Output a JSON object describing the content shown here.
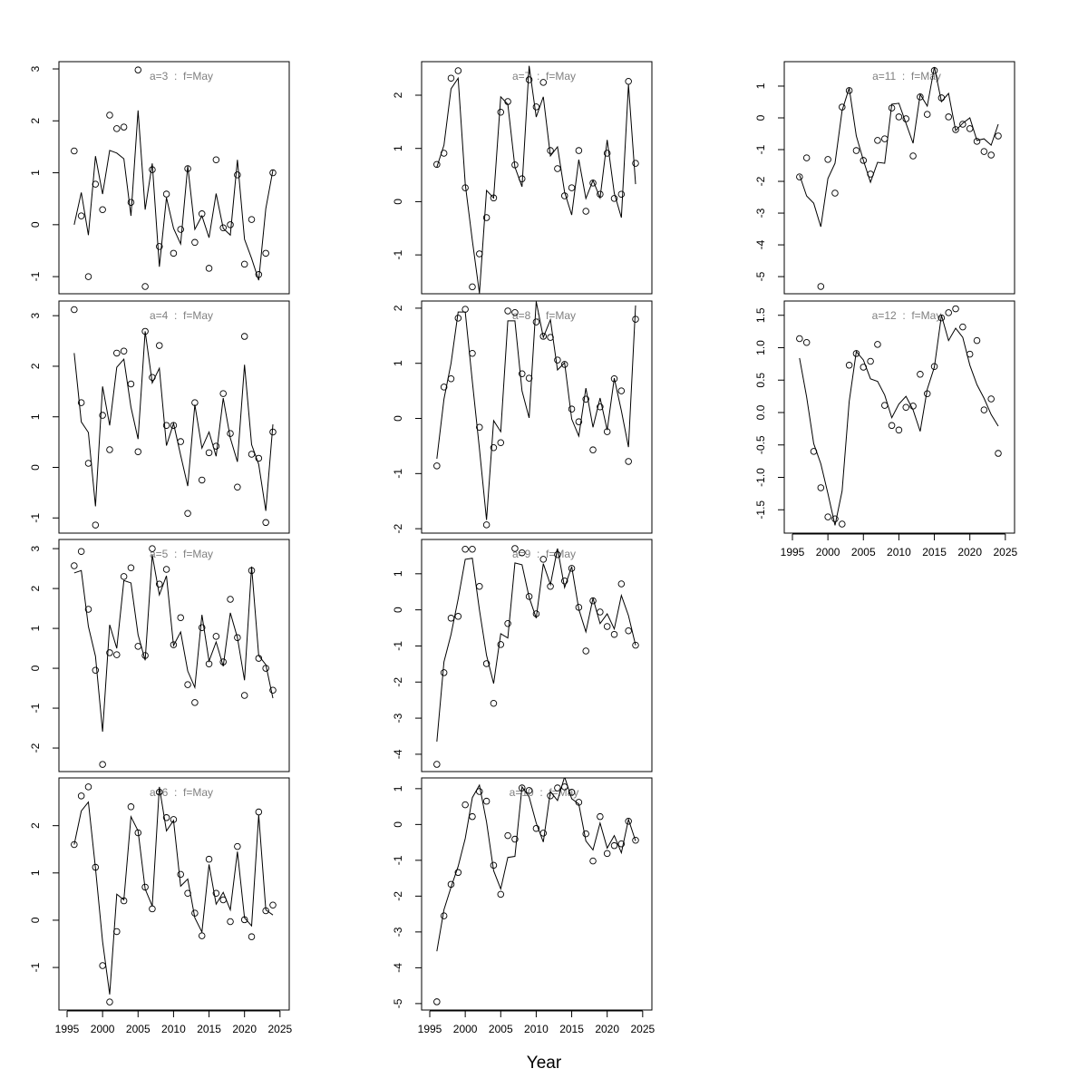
{
  "x_label": "Year",
  "chart_data": [
    {
      "type": "line",
      "title": "a=3  :  f=May",
      "color": "#000000",
      "x": [
        1996,
        1997,
        1998,
        1999,
        2000,
        2001,
        2002,
        2003,
        2004,
        2005,
        2006,
        2007,
        2008,
        2009,
        2010,
        2011,
        2012,
        2013,
        2014,
        2015,
        2016,
        2017,
        2018,
        2019,
        2020,
        2021,
        2022,
        2023,
        2024
      ],
      "points": [
        1.42,
        0.17,
        -1.0,
        0.78,
        0.29,
        2.11,
        1.85,
        1.88,
        0.43,
        2.98,
        -1.19,
        1.06,
        -0.42,
        0.59,
        -0.55,
        -0.09,
        1.08,
        -0.34,
        0.21,
        -0.84,
        1.25,
        -0.06,
        0.0,
        0.96,
        -0.76,
        0.1,
        -0.96,
        -0.55,
        1.0
      ],
      "line": [
        0.0,
        0.62,
        -0.2,
        1.32,
        0.59,
        1.43,
        1.38,
        1.27,
        0.17,
        2.2,
        0.29,
        1.18,
        -0.81,
        0.52,
        -0.07,
        -0.37,
        1.13,
        -0.09,
        0.17,
        -0.25,
        0.6,
        -0.07,
        -0.2,
        1.25,
        -0.28,
        -0.65,
        -1.07,
        0.31,
        1.05
      ],
      "xlim": [
        1993.85,
        2026.3
      ],
      "ylim": [
        -1.33,
        3.14
      ],
      "yticks": [
        -1,
        0,
        1,
        2,
        3
      ]
    },
    {
      "type": "line",
      "title": "a=4  :  f=May",
      "color": "#000000",
      "x": [
        1996,
        1997,
        1998,
        1999,
        2000,
        2001,
        2002,
        2003,
        2004,
        2005,
        2006,
        2007,
        2008,
        2009,
        2010,
        2011,
        2012,
        2013,
        2014,
        2015,
        2016,
        2017,
        2018,
        2019,
        2020,
        2021,
        2022,
        2023,
        2024
      ],
      "points": [
        3.12,
        1.28,
        0.08,
        -1.14,
        1.03,
        0.35,
        2.26,
        2.3,
        1.65,
        0.31,
        2.69,
        1.78,
        2.41,
        0.83,
        0.83,
        0.51,
        -0.91,
        1.28,
        -0.25,
        0.29,
        0.42,
        1.46,
        0.67,
        -0.39,
        2.59,
        0.26,
        0.18,
        -1.09,
        0.7
      ],
      "line": [
        2.26,
        0.9,
        0.69,
        -0.77,
        1.6,
        0.83,
        1.98,
        2.14,
        1.19,
        0.56,
        2.69,
        1.67,
        1.96,
        0.43,
        0.87,
        0.24,
        -0.37,
        1.24,
        0.38,
        0.7,
        0.22,
        1.37,
        0.58,
        0.11,
        2.03,
        0.45,
        0.06,
        -0.86,
        0.85
      ],
      "xlim": [
        1993.85,
        2026.3
      ],
      "ylim": [
        -1.3,
        3.29
      ],
      "yticks": [
        -1,
        0,
        1,
        2,
        3
      ]
    },
    {
      "type": "line",
      "title": "a=5  :  f=May",
      "color": "#000000",
      "x": [
        1996,
        1997,
        1998,
        1999,
        2000,
        2001,
        2002,
        2003,
        2004,
        2005,
        2006,
        2007,
        2008,
        2009,
        2010,
        2011,
        2012,
        2013,
        2014,
        2015,
        2016,
        2017,
        2018,
        2019,
        2020,
        2021,
        2022,
        2023,
        2024
      ],
      "points": [
        2.57,
        2.93,
        1.48,
        -0.05,
        -2.41,
        0.39,
        0.34,
        2.3,
        2.52,
        0.55,
        0.32,
        3.0,
        2.11,
        2.48,
        0.59,
        1.27,
        -0.41,
        -0.86,
        1.02,
        0.11,
        0.8,
        0.16,
        1.73,
        0.77,
        -0.68,
        2.45,
        0.25,
        0.0,
        -0.55
      ],
      "line": [
        2.39,
        2.45,
        1.05,
        0.3,
        -1.59,
        1.09,
        0.5,
        2.2,
        2.14,
        0.84,
        0.2,
        2.84,
        1.84,
        2.32,
        0.57,
        0.91,
        -0.07,
        -0.48,
        1.34,
        0.18,
        0.66,
        0.05,
        1.39,
        0.77,
        -0.3,
        2.55,
        0.32,
        0.09,
        -0.75
      ],
      "xlim": [
        1993.85,
        2026.3
      ],
      "ylim": [
        -2.59,
        3.23
      ],
      "yticks": [
        -2,
        -1,
        0,
        1,
        2,
        3
      ]
    },
    {
      "type": "line",
      "title": "a=6  :  f=May",
      "color": "#000000",
      "x": [
        1996,
        1997,
        1998,
        1999,
        2000,
        2001,
        2002,
        2003,
        2004,
        2005,
        2006,
        2007,
        2008,
        2009,
        2010,
        2011,
        2012,
        2013,
        2014,
        2015,
        2016,
        2017,
        2018,
        2019,
        2020,
        2021,
        2022,
        2023,
        2024
      ],
      "points": [
        1.6,
        2.63,
        2.82,
        1.12,
        -0.96,
        -1.73,
        -0.24,
        0.41,
        2.4,
        1.85,
        0.7,
        0.24,
        2.71,
        2.17,
        2.13,
        0.97,
        0.57,
        0.15,
        -0.33,
        1.29,
        0.57,
        0.43,
        -0.03,
        1.56,
        0.01,
        -0.35,
        2.29,
        0.2,
        0.32
      ],
      "line": [
        1.6,
        2.31,
        2.5,
        1.1,
        -0.45,
        -1.57,
        0.55,
        0.43,
        2.19,
        1.89,
        0.66,
        0.3,
        2.82,
        1.89,
        2.11,
        0.72,
        0.87,
        0.05,
        -0.25,
        1.18,
        0.34,
        0.59,
        0.22,
        1.45,
        0.05,
        -0.12,
        2.23,
        0.22,
        0.11
      ],
      "xlim": [
        1993.85,
        2026.3
      ],
      "ylim": [
        -1.9,
        3.01
      ],
      "yticks": [
        -1,
        0,
        1,
        2
      ],
      "xticks": [
        1995,
        2000,
        2005,
        2010,
        2015,
        2020,
        2025
      ]
    },
    {
      "type": "line",
      "title": "a=7  :  f=May",
      "color": "#000000",
      "x": [
        1996,
        1997,
        1998,
        1999,
        2000,
        2001,
        2002,
        2003,
        2004,
        2005,
        2006,
        2007,
        2008,
        2009,
        2010,
        2011,
        2012,
        2013,
        2014,
        2015,
        2016,
        2017,
        2018,
        2019,
        2020,
        2021,
        2022,
        2023,
        2024
      ],
      "points": [
        0.7,
        0.91,
        2.32,
        2.46,
        0.26,
        -1.6,
        -0.98,
        -0.3,
        0.07,
        1.68,
        1.88,
        0.69,
        0.43,
        2.29,
        1.78,
        2.24,
        0.96,
        0.62,
        0.11,
        0.26,
        0.96,
        -0.18,
        0.35,
        0.14,
        0.91,
        0.06,
        0.14,
        2.26,
        0.72
      ],
      "line": [
        0.65,
        1.06,
        2.12,
        2.32,
        0.33,
        -0.73,
        -1.72,
        0.21,
        0.07,
        1.97,
        1.83,
        0.65,
        0.28,
        2.55,
        1.59,
        1.97,
        0.86,
        1.03,
        0.18,
        -0.25,
        0.79,
        0.06,
        0.4,
        0.07,
        1.16,
        0.16,
        -0.3,
        2.2,
        0.33
      ],
      "xlim": [
        1993.85,
        2026.3
      ],
      "ylim": [
        -1.73,
        2.63
      ],
      "yticks": [
        -1,
        0,
        1,
        2
      ]
    },
    {
      "type": "line",
      "title": "a=8  :  f=May",
      "color": "#000000",
      "x": [
        1996,
        1997,
        1998,
        1999,
        2000,
        2001,
        2002,
        2003,
        2004,
        2005,
        2006,
        2007,
        2008,
        2009,
        2010,
        2011,
        2012,
        2013,
        2014,
        2015,
        2016,
        2017,
        2018,
        2019,
        2020,
        2021,
        2022,
        2023,
        2024
      ],
      "points": [
        -0.86,
        0.57,
        0.72,
        1.82,
        1.98,
        1.18,
        -0.16,
        -1.93,
        -0.53,
        -0.44,
        1.95,
        1.92,
        0.81,
        0.73,
        1.75,
        1.49,
        1.47,
        1.06,
        0.98,
        0.17,
        -0.06,
        0.35,
        -0.57,
        0.21,
        -0.24,
        0.72,
        0.5,
        -0.78,
        1.8
      ],
      "line": [
        -0.73,
        0.35,
        1.0,
        1.93,
        1.93,
        0.67,
        -0.55,
        -1.84,
        -0.04,
        -0.24,
        1.77,
        1.77,
        0.5,
        0.01,
        2.12,
        1.47,
        1.79,
        0.88,
        1.01,
        -0.01,
        -0.32,
        0.55,
        -0.16,
        0.37,
        -0.21,
        0.73,
        0.14,
        -0.52,
        2.05
      ],
      "xlim": [
        1993.85,
        2026.3
      ],
      "ylim": [
        -2.08,
        2.13
      ],
      "yticks": [
        -2,
        -1,
        0,
        1,
        2
      ]
    },
    {
      "type": "line",
      "title": "a=9  :  f=May",
      "color": "#000000",
      "x": [
        1996,
        1997,
        1998,
        1999,
        2000,
        2001,
        2002,
        2003,
        2004,
        2005,
        2006,
        2007,
        2008,
        2009,
        2010,
        2011,
        2012,
        2013,
        2014,
        2015,
        2016,
        2017,
        2018,
        2019,
        2020,
        2021,
        2022,
        2023,
        2024
      ],
      "points": [
        -4.28,
        -1.74,
        -0.23,
        -0.18,
        1.68,
        1.68,
        0.65,
        -1.49,
        -2.59,
        -0.96,
        -0.38,
        1.7,
        1.58,
        0.37,
        -0.11,
        1.4,
        0.65,
        1.53,
        0.8,
        1.15,
        0.07,
        -1.14,
        0.25,
        -0.06,
        -0.46,
        -0.68,
        0.72,
        -0.58,
        -0.98
      ],
      "line": [
        -3.65,
        -1.44,
        -0.68,
        0.3,
        1.4,
        1.43,
        0.0,
        -1.26,
        -2.04,
        -0.66,
        -0.78,
        1.3,
        1.25,
        0.35,
        -0.23,
        1.28,
        0.7,
        1.7,
        0.62,
        1.2,
        0.02,
        -0.61,
        0.32,
        -0.38,
        -0.11,
        -0.53,
        0.4,
        -0.16,
        -0.98
      ],
      "xlim": [
        1993.85,
        2026.3
      ],
      "ylim": [
        -4.48,
        1.95
      ],
      "yticks": [
        -4,
        -3,
        -2,
        -1,
        0,
        1
      ]
    },
    {
      "type": "line",
      "title": "a=10  :  f=May",
      "color": "#000000",
      "x": [
        1996,
        1997,
        1998,
        1999,
        2000,
        2001,
        2002,
        2003,
        2004,
        2005,
        2006,
        2007,
        2008,
        2009,
        2010,
        2011,
        2012,
        2013,
        2014,
        2015,
        2016,
        2017,
        2018,
        2019,
        2020,
        2021,
        2022,
        2023,
        2024
      ],
      "points": [
        -4.95,
        -2.55,
        -1.67,
        -1.34,
        0.55,
        0.22,
        0.92,
        0.65,
        -1.14,
        -1.95,
        -0.31,
        -0.41,
        1.02,
        0.95,
        -0.11,
        -0.24,
        0.8,
        1.02,
        1.05,
        0.9,
        0.62,
        -0.26,
        -1.02,
        0.22,
        -0.81,
        -0.59,
        -0.54,
        0.09,
        -0.44
      ],
      "line": [
        -3.54,
        -2.38,
        -1.75,
        -1.17,
        -0.39,
        0.75,
        1.1,
        0.07,
        -1.29,
        -1.8,
        -0.92,
        -0.89,
        1.05,
        0.77,
        0.04,
        -0.49,
        0.92,
        0.67,
        1.33,
        0.72,
        0.57,
        -0.46,
        -0.71,
        0.04,
        -0.66,
        -0.31,
        -0.79,
        0.14,
        -0.46
      ],
      "xlim": [
        1993.85,
        2026.3
      ],
      "ylim": [
        -5.18,
        1.3
      ],
      "yticks": [
        -5,
        -4,
        -3,
        -2,
        -1,
        0,
        1
      ],
      "xticks": [
        1995,
        2000,
        2005,
        2010,
        2015,
        2020,
        2025
      ]
    },
    {
      "type": "line",
      "title": "a=11  :  f=May",
      "color": "#000000",
      "x": [
        1996,
        1997,
        1998,
        1999,
        2000,
        2001,
        2002,
        2003,
        2004,
        2005,
        2006,
        2007,
        2008,
        2009,
        2010,
        2011,
        2012,
        2013,
        2014,
        2015,
        2016,
        2017,
        2018,
        2019,
        2020,
        2021,
        2022,
        2023,
        2024
      ],
      "points": [
        -1.86,
        -1.26,
        null,
        -5.31,
        -1.31,
        -2.37,
        0.34,
        0.86,
        -1.03,
        -1.34,
        -1.77,
        -0.71,
        -0.66,
        0.31,
        0.03,
        -0.03,
        -1.2,
        0.66,
        0.11,
        1.49,
        0.63,
        0.03,
        -0.37,
        -0.2,
        -0.34,
        -0.74,
        -1.06,
        -1.17,
        -0.57
      ],
      "line": [
        -1.8,
        -2.46,
        -2.69,
        -3.43,
        -1.91,
        -1.43,
        0.23,
        0.94,
        -0.57,
        -1.34,
        -2.03,
        -1.4,
        -1.43,
        0.43,
        0.46,
        -0.17,
        -0.8,
        0.74,
        0.37,
        1.6,
        0.51,
        0.77,
        -0.4,
        -0.17,
        0.0,
        -0.71,
        -0.66,
        -0.86,
        -0.2
      ],
      "xlim": [
        1993.85,
        2026.3
      ],
      "ylim": [
        -5.54,
        1.77
      ],
      "yticks": [
        -5,
        -4,
        -3,
        -2,
        -1,
        0,
        1
      ]
    },
    {
      "type": "line",
      "title": "a=12  :  f=May",
      "color": "#000000",
      "x": [
        1996,
        1997,
        1998,
        1999,
        2000,
        2001,
        2002,
        2003,
        2004,
        2005,
        2006,
        2007,
        2008,
        2009,
        2010,
        2011,
        2012,
        2013,
        2014,
        2015,
        2016,
        2017,
        2018,
        2019,
        2020,
        2021,
        2022,
        2023,
        2024
      ],
      "points": [
        1.14,
        1.08,
        -0.6,
        -1.16,
        -1.61,
        -1.64,
        -1.72,
        0.73,
        0.91,
        0.7,
        0.79,
        1.05,
        0.11,
        -0.2,
        -0.27,
        0.08,
        0.1,
        0.59,
        0.29,
        0.71,
        1.46,
        1.54,
        1.6,
        1.32,
        0.9,
        1.11,
        0.04,
        0.21,
        -0.63
      ],
      "line": [
        0.84,
        0.24,
        -0.48,
        -0.79,
        -1.25,
        -1.74,
        -1.21,
        0.17,
        0.94,
        0.81,
        0.52,
        0.48,
        0.27,
        -0.08,
        0.13,
        0.25,
        0.04,
        -0.29,
        0.36,
        0.7,
        1.5,
        1.11,
        1.3,
        1.16,
        0.73,
        0.43,
        0.22,
        -0.03,
        -0.21
      ],
      "xlim": [
        1993.85,
        2026.3
      ],
      "ylim": [
        -1.86,
        1.72
      ],
      "yticks": [
        -1.5,
        {
          "value": -1,
          "label": "-1.0"
        },
        -0.5,
        {
          "value": 0,
          "label": "0.0"
        },
        0.5,
        {
          "value": 1,
          "label": "1.0"
        },
        1.5
      ],
      "xticks": [
        1995,
        2000,
        2005,
        2010,
        2015,
        2020,
        2025
      ]
    }
  ]
}
